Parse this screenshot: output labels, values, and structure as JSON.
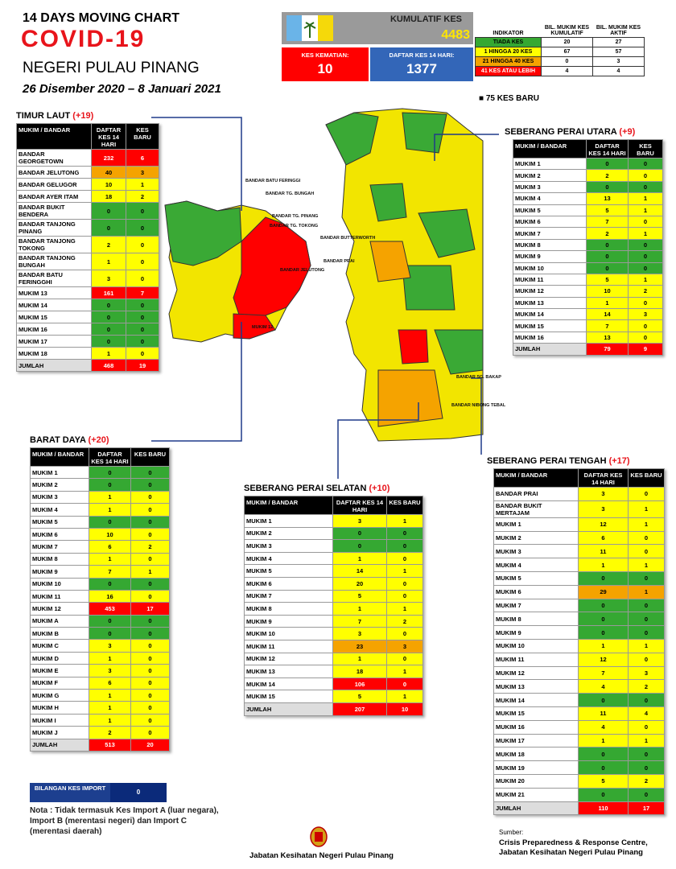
{
  "header": {
    "line1": "14  DAYS MOVING CHART",
    "line2": "COVID-19",
    "region": "NEGERI PULAU PINANG",
    "dates": "26 Disember 2020 – 8 Januari 2021"
  },
  "summary": {
    "kumulatif_label": "KUMULATIF KES",
    "kumulatif": 4483,
    "kematian_label": "KES KEMATIAN:",
    "kematian": 10,
    "daftar_label": "DAFTAR KES 14 HARI:",
    "daftar": 1377
  },
  "indicator": {
    "headers": [
      "INDIKATOR",
      "BIL. MUKIM KES KUMULATIF",
      "BIL. MUKIM KES AKTIF"
    ],
    "rows": [
      [
        "TIADA KES",
        20,
        27
      ],
      [
        "1 HINGGA 20 KES",
        67,
        57
      ],
      [
        "21 HINGGA 40 KES",
        0,
        3
      ],
      [
        "41 KES ATAU LEBIH",
        4,
        4
      ]
    ],
    "colors": [
      "#35a832",
      "#ffff00",
      "#f5a300",
      "#ff0000"
    ]
  },
  "new_cases": "75 KES BARU",
  "map": {
    "labels": [
      "BANDAR BATU FERINGGI",
      "BANDAR TG. BUNGAH",
      "BANDAR TG. PINANG",
      "BANDAR TG. TOKONG",
      "BANDAR JELUTONG",
      "BANDAR BUTTERWORTH",
      "BANDAR PRAI",
      "BANDAR SG. BAKAP",
      "BANDAR NIBONG TEBAL",
      "MUKIM 12"
    ]
  },
  "districts": [
    {
      "title": "TIMUR LAUT",
      "delta": "(+19)",
      "headers": [
        "MUKIM / BANDAR",
        "DAFTAR KES 14 HARI",
        "KES BARU"
      ],
      "rows": [
        [
          "BANDAR GEORGETOWN",
          232,
          6
        ],
        [
          "BANDAR JELUTONG",
          40,
          3
        ],
        [
          "BANDAR GELUGOR",
          10,
          1
        ],
        [
          "BANDAR AYER ITAM",
          18,
          2
        ],
        [
          "BANDAR BUKIT BENDERA",
          0,
          0
        ],
        [
          "BANDAR TANJONG PINANG",
          0,
          0
        ],
        [
          "BANDAR TANJONG TOKONG",
          2,
          0
        ],
        [
          "BANDAR TANJONG BUNGAH",
          1,
          0
        ],
        [
          "BANDAR BATU FERINGGHI",
          3,
          0
        ],
        [
          "MUKIM 13",
          161,
          7
        ],
        [
          "MUKIM 14",
          0,
          0
        ],
        [
          "MUKIM 15",
          0,
          0
        ],
        [
          "MUKIM 16",
          0,
          0
        ],
        [
          "MUKIM 17",
          0,
          0
        ],
        [
          "MUKIM 18",
          1,
          0
        ]
      ],
      "levels": [
        3,
        2,
        1,
        1,
        0,
        0,
        1,
        1,
        1,
        3,
        0,
        0,
        0,
        0,
        1
      ],
      "total": [
        "JUMLAH",
        468,
        19
      ]
    },
    {
      "title": "BARAT DAYA",
      "delta": "(+20)",
      "headers": [
        "MUKIM / BANDAR",
        "DAFTAR KES 14 HARI",
        "KES BARU"
      ],
      "rows": [
        [
          "MUKIM 1",
          0,
          0
        ],
        [
          "MUKIM 2",
          0,
          0
        ],
        [
          "MUKIM 3",
          1,
          0
        ],
        [
          "MUKIM 4",
          1,
          0
        ],
        [
          "MUKIM 5",
          0,
          0
        ],
        [
          "MUKIM 6",
          10,
          0
        ],
        [
          "MUKIM 7",
          6,
          2
        ],
        [
          "MUKIM 8",
          1,
          0
        ],
        [
          "MUKIM 9",
          7,
          1
        ],
        [
          "MUKIM 10",
          0,
          0
        ],
        [
          "MUKIM 11",
          16,
          0
        ],
        [
          "MUKIM 12",
          453,
          17
        ],
        [
          "MUKIM A",
          0,
          0
        ],
        [
          "MUKIM B",
          0,
          0
        ],
        [
          "MUKIM C",
          3,
          0
        ],
        [
          "MUKIM D",
          1,
          0
        ],
        [
          "MUKIM E",
          3,
          0
        ],
        [
          "MUKIM F",
          6,
          0
        ],
        [
          "MUKIM G",
          1,
          0
        ],
        [
          "MUKIM H",
          1,
          0
        ],
        [
          "MUKIM I",
          1,
          0
        ],
        [
          "MUKIM J",
          2,
          0
        ]
      ],
      "levels": [
        0,
        0,
        1,
        1,
        0,
        1,
        1,
        1,
        1,
        0,
        1,
        3,
        0,
        0,
        1,
        1,
        1,
        1,
        1,
        1,
        1,
        1
      ],
      "total": [
        "JUMLAH",
        513,
        20
      ]
    },
    {
      "title": "SEBERANG PERAI UTARA",
      "delta": "(+9)",
      "headers": [
        "MUKIM / BANDAR",
        "DAFTAR KES 14 HARI",
        "KES BARU"
      ],
      "rows": [
        [
          "MUKIM 1",
          0,
          0
        ],
        [
          "MUKIM 2",
          2,
          0
        ],
        [
          "MUKIM 3",
          0,
          0
        ],
        [
          "MUKIM 4",
          13,
          1
        ],
        [
          "MUKIM 5",
          5,
          1
        ],
        [
          "MUKIM 6",
          7,
          0
        ],
        [
          "MUKIM 7",
          2,
          1
        ],
        [
          "MUKIM 8",
          0,
          0
        ],
        [
          "MUKIM 9",
          0,
          0
        ],
        [
          "MUKIM 10",
          0,
          0
        ],
        [
          "MUKIM 11",
          5,
          1
        ],
        [
          "MUKIM 12",
          10,
          2
        ],
        [
          "MUKIM 13",
          1,
          0
        ],
        [
          "MUKIM 14",
          14,
          3
        ],
        [
          "MUKIM 15",
          7,
          0
        ],
        [
          "MUKIM 16",
          13,
          0
        ]
      ],
      "levels": [
        0,
        1,
        0,
        1,
        1,
        1,
        1,
        0,
        0,
        0,
        1,
        1,
        1,
        1,
        1,
        1
      ],
      "total": [
        "JUMLAH",
        79,
        9
      ]
    },
    {
      "title": "SEBERANG PERAI SELATAN",
      "delta": "(+10)",
      "headers": [
        "MUKIM / BANDAR",
        "DAFTAR KES 14 HARI",
        "KES BARU"
      ],
      "rows": [
        [
          "MUKIM 1",
          3,
          1
        ],
        [
          "MUKIM 2",
          0,
          0
        ],
        [
          "MUKIM 3",
          0,
          0
        ],
        [
          "MUKIM 4",
          1,
          0
        ],
        [
          "MUKIM 5",
          14,
          1
        ],
        [
          "MUKIM 6",
          20,
          0
        ],
        [
          "MUKIM 7",
          5,
          0
        ],
        [
          "MUKIM 8",
          1,
          1
        ],
        [
          "MUKIM 9",
          7,
          2
        ],
        [
          "MUKIM 10",
          3,
          0
        ],
        [
          "MUKIM 11",
          23,
          3
        ],
        [
          "MUKIM 12",
          1,
          0
        ],
        [
          "MUKIM 13",
          18,
          1
        ],
        [
          "MUKIM 14",
          106,
          0
        ],
        [
          "MUKIM 15",
          5,
          1
        ]
      ],
      "levels": [
        1,
        0,
        0,
        1,
        1,
        1,
        1,
        1,
        1,
        1,
        2,
        1,
        1,
        3,
        1
      ],
      "total": [
        "JUMLAH",
        207,
        10
      ]
    },
    {
      "title": "SEBERANG PERAI TENGAH",
      "delta": "(+17)",
      "headers": [
        "MUKIM / BANDAR",
        "DAFTAR KES 14 HARI",
        "KES BARU"
      ],
      "rows": [
        [
          "BANDAR PRAI",
          3,
          0
        ],
        [
          "BANDAR BUKIT MERTAJAM",
          3,
          1
        ],
        [
          "MUKIM 1",
          12,
          1
        ],
        [
          "MUKIM 2",
          6,
          0
        ],
        [
          "MUKIM 3",
          11,
          0
        ],
        [
          "MUKIM 4",
          1,
          1
        ],
        [
          "MUKIM 5",
          0,
          0
        ],
        [
          "MUKIM 6",
          29,
          1
        ],
        [
          "MUKIM 7",
          0,
          0
        ],
        [
          "MUKIM 8",
          0,
          0
        ],
        [
          "MUKIM 9",
          0,
          0
        ],
        [
          "MUKIM 10",
          1,
          1
        ],
        [
          "MUKIM 11",
          12,
          0
        ],
        [
          "MUKIM 12",
          7,
          3
        ],
        [
          "MUKIM 13",
          4,
          2
        ],
        [
          "MUKIM 14",
          0,
          0
        ],
        [
          "MUKIM 15",
          11,
          4
        ],
        [
          "MUKIM 16",
          4,
          0
        ],
        [
          "MUKIM 17",
          1,
          1
        ],
        [
          "MUKIM 18",
          0,
          0
        ],
        [
          "MUKIM 19",
          0,
          0
        ],
        [
          "MUKIM 20",
          5,
          2
        ],
        [
          "MUKIM 21",
          0,
          0
        ]
      ],
      "levels": [
        1,
        1,
        1,
        1,
        1,
        1,
        0,
        2,
        0,
        0,
        0,
        1,
        1,
        1,
        1,
        0,
        1,
        1,
        1,
        0,
        0,
        1,
        0
      ],
      "total": [
        "JUMLAH",
        110,
        17
      ]
    }
  ],
  "import": {
    "label": "BILANGAN KES IMPORT",
    "value": 0,
    "note": "Nota : Tidak termasuk Kes Import A (luar negara), Import B (merentasi negeri) dan Import C (merentasi daerah)"
  },
  "footer": {
    "agency": "Jabatan Kesihatan Negeri Pulau Pinang",
    "source_label": "Sumber:",
    "source": "Crisis Preparedness & Response Centre, Jabatan Kesihatan Negeri Pulau Pinang"
  }
}
